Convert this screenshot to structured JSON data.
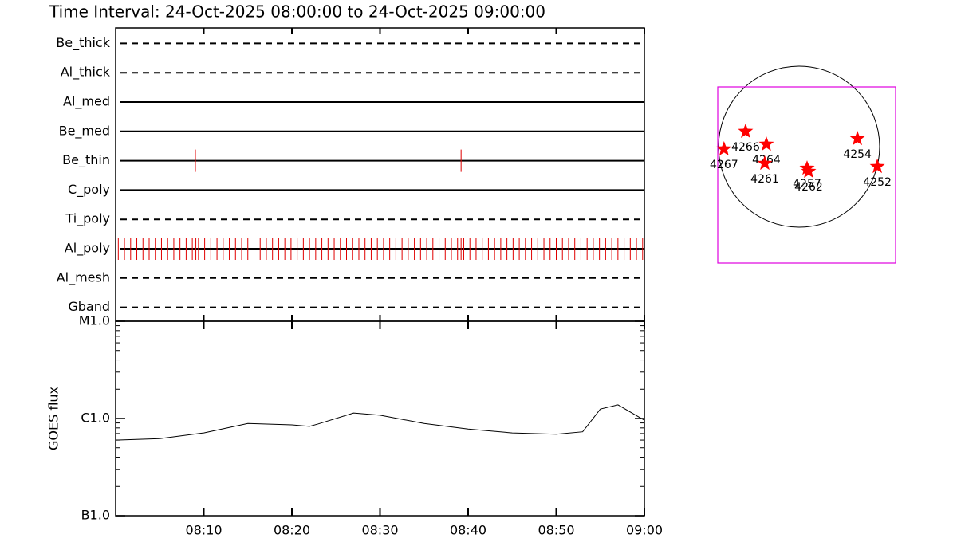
{
  "title": "Time Interval: 24-Oct-2025 08:00:00 to 24-Oct-2025 09:00:00",
  "chart_data": [
    {
      "type": "timeline",
      "xlim": [
        0,
        60
      ],
      "xticks": [
        10,
        20,
        30,
        40,
        50,
        60
      ],
      "mark_color": "#e00000",
      "rows": [
        {
          "name": "Be_thick",
          "dashed": true,
          "times": []
        },
        {
          "name": "Al_thick",
          "dashed": true,
          "times": []
        },
        {
          "name": "Al_med",
          "dashed": false,
          "times": []
        },
        {
          "name": "Be_med",
          "dashed": false,
          "times": []
        },
        {
          "name": "Be_thin",
          "dashed": false,
          "times": [
            9.05,
            39.2
          ]
        },
        {
          "name": "C_poly",
          "dashed": false,
          "times": []
        },
        {
          "name": "Ti_poly",
          "dashed": true,
          "times": []
        },
        {
          "name": "Al_poly",
          "dashed": false,
          "times": [
            0.3,
            1.0,
            1.7,
            2.4,
            3.1,
            3.8,
            4.5,
            5.2,
            5.9,
            6.6,
            7.3,
            8.0,
            8.7,
            9.1,
            9.4,
            10.1,
            10.8,
            11.5,
            12.2,
            12.9,
            13.6,
            14.3,
            15.0,
            15.7,
            16.4,
            17.1,
            17.8,
            18.5,
            19.2,
            19.9,
            20.6,
            21.3,
            22.0,
            22.7,
            23.4,
            24.1,
            24.8,
            25.5,
            26.2,
            26.9,
            27.6,
            28.3,
            29.0,
            29.7,
            30.4,
            31.1,
            31.8,
            32.5,
            33.2,
            33.9,
            34.6,
            35.3,
            36.0,
            36.7,
            37.4,
            38.1,
            38.8,
            39.2,
            39.5,
            40.2,
            40.9,
            41.6,
            42.3,
            43.0,
            43.7,
            44.4,
            45.1,
            45.8,
            46.5,
            47.2,
            47.9,
            48.6,
            49.3,
            50.0,
            50.7,
            51.4,
            52.1,
            52.8,
            53.5,
            54.2,
            54.9,
            55.6,
            56.3,
            57.0,
            57.7,
            58.4,
            59.1,
            59.8
          ]
        },
        {
          "name": "Al_mesh",
          "dashed": true,
          "times": []
        },
        {
          "name": "Gband",
          "dashed": true,
          "times": []
        }
      ]
    },
    {
      "type": "line",
      "ylabel": "GOES flux",
      "log_y": true,
      "color": "#000000",
      "x": [
        0,
        5,
        10,
        15,
        20,
        22,
        23,
        27,
        30,
        35,
        40,
        45,
        50,
        53,
        55,
        57,
        60
      ],
      "values": [
        6e-07,
        6.2e-07,
        7.1e-07,
        8.9e-07,
        8.6e-07,
        8.3e-07,
        8.8e-07,
        1.14e-06,
        1.08e-06,
        8.9e-07,
        7.8e-07,
        7.1e-07,
        6.9e-07,
        7.3e-07,
        1.25e-06,
        1.38e-06,
        9.6e-07
      ],
      "xlim": [
        0,
        60
      ],
      "xticks": [
        {
          "value": 10,
          "label": "08:10"
        },
        {
          "value": 20,
          "label": "08:20"
        },
        {
          "value": 30,
          "label": "08:30"
        },
        {
          "value": 40,
          "label": "08:40"
        },
        {
          "value": 50,
          "label": "08:50"
        },
        {
          "value": 60,
          "label": "09:00"
        }
      ],
      "ylim": [
        1e-07,
        1e-05
      ],
      "yticks": [
        {
          "value": 1e-07,
          "label": "B1.0"
        },
        {
          "value": 1e-06,
          "label": "C1.0"
        },
        {
          "value": 1e-05,
          "label": "M1.0"
        }
      ]
    },
    {
      "type": "scatter",
      "color": "#ff0000",
      "xlim": [
        -1200,
        1200
      ],
      "ylim": [
        -1200,
        1200
      ],
      "x": [
        -904,
        -644,
        -394,
        -413,
        96,
        115,
        702,
        942
      ],
      "y": [
        -29,
        183,
        29,
        -202,
        -260,
        -298,
        96,
        -240
      ],
      "labels": [
        "4267",
        "4266",
        "4264",
        "4261",
        "4257",
        "4262",
        "4254",
        "4252"
      ]
    }
  ]
}
